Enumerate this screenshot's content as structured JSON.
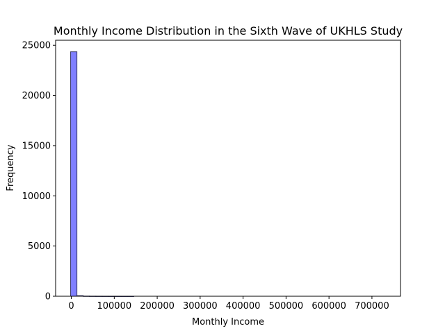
{
  "chart_data": {
    "type": "bar",
    "title": "Monthly Income Distribution in the Sixth Wave of UKHLS Study",
    "xlabel": "Monthly Income",
    "ylabel": "Frequency",
    "xlim": [
      -36500,
      766500
    ],
    "ylim": [
      0,
      25500
    ],
    "x_ticks": [
      0,
      100000,
      200000,
      300000,
      400000,
      500000,
      600000,
      700000
    ],
    "y_ticks": [
      0,
      5000,
      10000,
      15000,
      20000,
      25000
    ],
    "bin_edges": [
      -1600,
      13100
    ],
    "bin_width": 14700,
    "values": [
      24350,
      60,
      15,
      8,
      5,
      3,
      2,
      2,
      1,
      1
    ],
    "bar_color": "#8080ff",
    "edge_color": "#3a3a66",
    "grid": false
  }
}
